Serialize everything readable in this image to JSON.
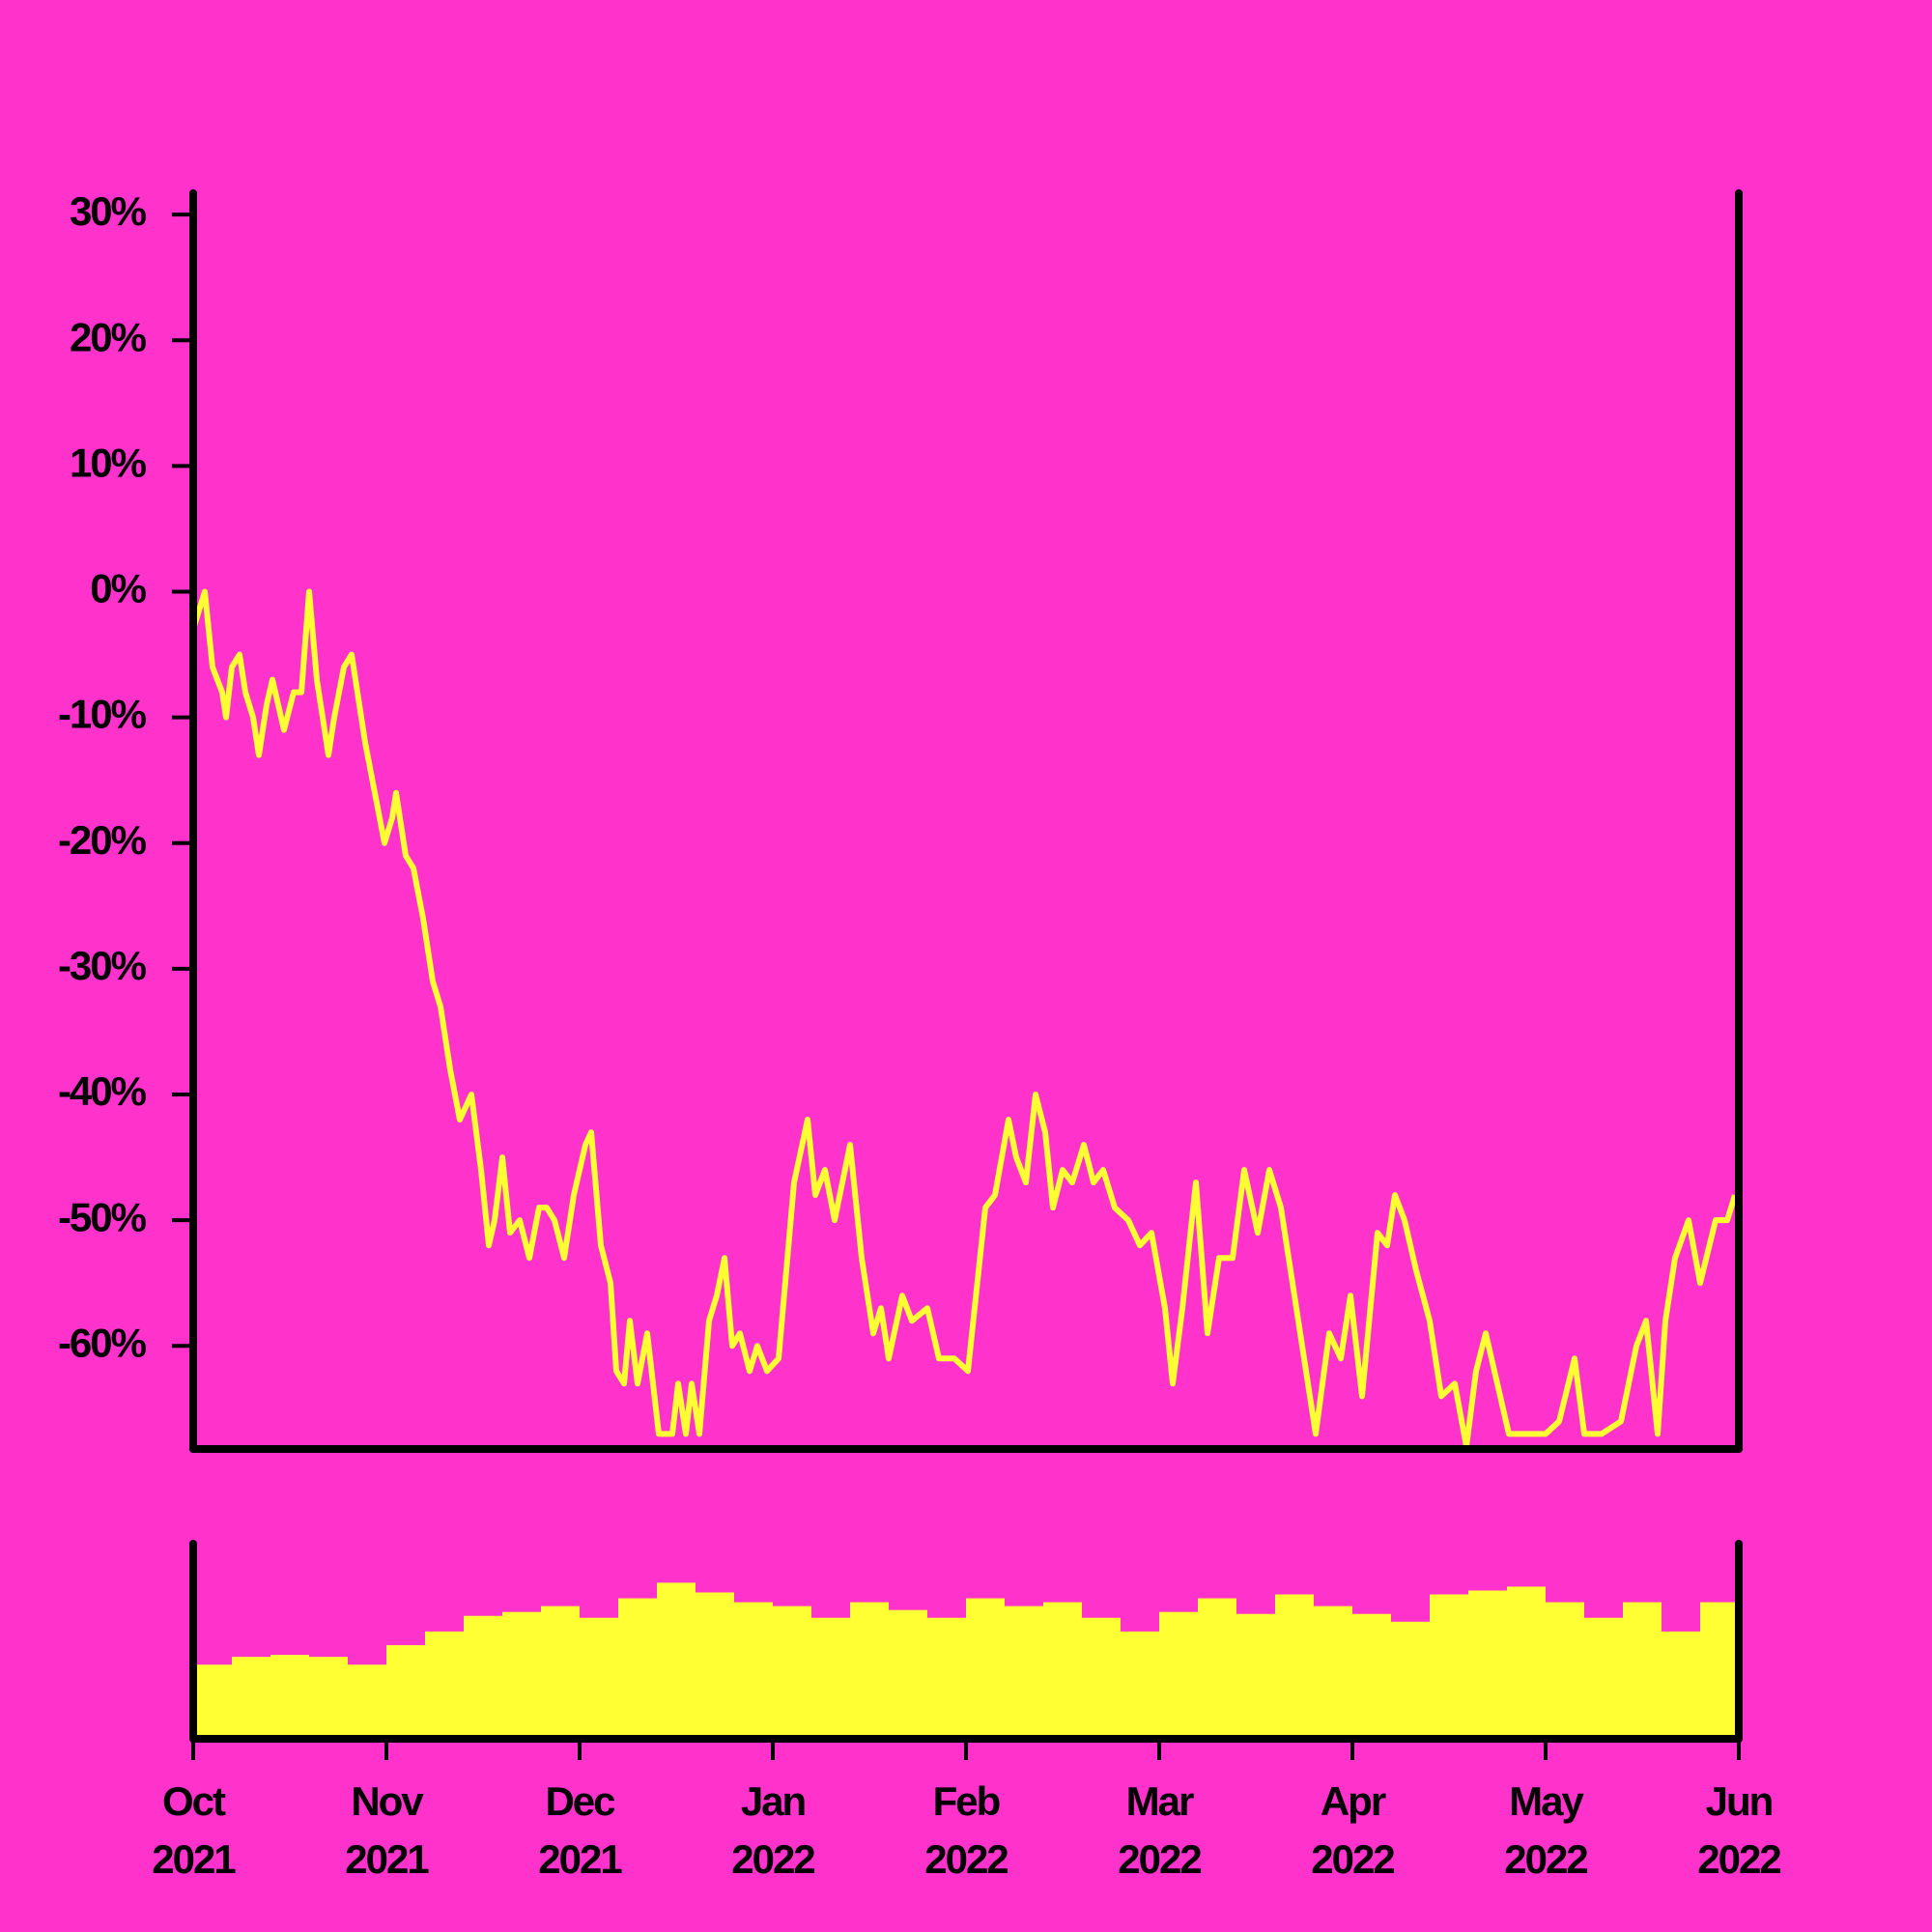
{
  "chart_data": [
    {
      "type": "line",
      "xlim": [
        0,
        8
      ],
      "ylim": [
        -68.2,
        31.7
      ],
      "yticks": [
        {
          "value": 30,
          "label": "30%"
        },
        {
          "value": 20,
          "label": "20%"
        },
        {
          "value": 10,
          "label": "10%"
        },
        {
          "value": 0,
          "label": "0%"
        },
        {
          "value": -10,
          "label": "-10%"
        },
        {
          "value": -20,
          "label": "-20%"
        },
        {
          "value": -30,
          "label": "-30%"
        },
        {
          "value": -40,
          "label": "-40%"
        },
        {
          "value": -50,
          "label": "-50%"
        },
        {
          "value": -60,
          "label": "-60%"
        }
      ],
      "color": "#ffff33",
      "x": [
        0,
        0.06,
        0.1,
        0.15,
        0.17,
        0.2,
        0.24,
        0.27,
        0.31,
        0.34,
        0.38,
        0.41,
        0.47,
        0.52,
        0.56,
        0.6,
        0.64,
        0.7,
        0.73,
        0.78,
        0.82,
        0.86,
        0.89,
        0.94,
        0.99,
        1.03,
        1.05,
        1.1,
        1.14,
        1.19,
        1.24,
        1.28,
        1.33,
        1.38,
        1.44,
        1.49,
        1.53,
        1.56,
        1.6,
        1.64,
        1.69,
        1.74,
        1.79,
        1.83,
        1.87,
        1.92,
        1.97,
        2.03,
        2.06,
        2.11,
        2.16,
        2.19,
        2.23,
        2.26,
        2.3,
        2.35,
        2.41,
        2.48,
        2.51,
        2.55,
        2.58,
        2.62,
        2.67,
        2.71,
        2.75,
        2.79,
        2.83,
        2.88,
        2.92,
        2.97,
        3.03,
        3.11,
        3.18,
        3.22,
        3.27,
        3.32,
        3.4,
        3.46,
        3.52,
        3.56,
        3.6,
        3.67,
        3.72,
        3.8,
        3.86,
        3.94,
        4.01,
        4.1,
        4.15,
        4.22,
        4.26,
        4.31,
        4.36,
        4.41,
        4.45,
        4.5,
        4.55,
        4.61,
        4.66,
        4.71,
        4.77,
        4.84,
        4.9,
        4.96,
        5.03,
        5.07,
        5.12,
        5.19,
        5.25,
        5.31,
        5.38,
        5.44,
        5.51,
        5.57,
        5.63,
        5.7,
        5.76,
        5.81,
        5.88,
        5.94,
        5.99,
        6.05,
        6.13,
        6.18,
        6.22,
        6.27,
        6.33,
        6.4,
        6.46,
        6.53,
        6.59,
        6.64,
        6.69,
        6.75,
        6.81,
        6.91,
        7.0,
        7.07,
        7.15,
        7.2,
        7.29,
        7.39,
        7.47,
        7.52,
        7.58,
        7.62,
        7.67,
        7.74,
        7.8,
        7.88,
        7.94,
        7.98
      ],
      "values": [
        -3,
        0,
        -6,
        -8,
        -10,
        -6,
        -5,
        -8,
        -10,
        -13,
        -9,
        -7,
        -11,
        -8,
        -8,
        0,
        -7,
        -13,
        -10,
        -6,
        -5,
        -9,
        -12,
        -16,
        -20,
        -18,
        -16,
        -21,
        -22,
        -26,
        -31,
        -33,
        -38,
        -42,
        -40,
        -46,
        -52,
        -50,
        -45,
        -51,
        -50,
        -53,
        -49,
        -49,
        -50,
        -53,
        -48,
        -44,
        -43,
        -52,
        -55,
        -62,
        -63,
        -58,
        -63,
        -59,
        -67,
        -67,
        -63,
        -67,
        -63,
        -67,
        -58,
        -56,
        -53,
        -60,
        -59,
        -62,
        -60,
        -62,
        -61,
        -47,
        -42,
        -48,
        -46,
        -50,
        -44,
        -53,
        -59,
        -57,
        -61,
        -56,
        -58,
        -57,
        -61,
        -61,
        -62,
        -49,
        -48,
        -42,
        -45,
        -47,
        -40,
        -43,
        -49,
        -46,
        -47,
        -44,
        -47,
        -46,
        -49,
        -50,
        -52,
        -51,
        -57,
        -63,
        -57,
        -47,
        -59,
        -53,
        -53,
        -46,
        -51,
        -46,
        -49,
        -56,
        -62,
        -67,
        -59,
        -61,
        -56,
        -64,
        -51,
        -52,
        -48,
        -50,
        -54,
        -58,
        -64,
        -63,
        -68,
        -62,
        -59,
        -63,
        -67,
        -67,
        -67,
        -66,
        -61,
        -67,
        -67,
        -66,
        -60,
        -58,
        -67,
        -58,
        -53,
        -50,
        -55,
        -50,
        -50,
        -48
      ]
    },
    {
      "type": "bar",
      "xlim": [
        0,
        8
      ],
      "ylim": [
        0,
        100
      ],
      "color": "#ffff33",
      "xticks": [
        {
          "value": 0,
          "label": "Oct\n2021"
        },
        {
          "value": 1,
          "label": "Nov\n2021"
        },
        {
          "value": 2,
          "label": "Dec\n2021"
        },
        {
          "value": 3,
          "label": "Jan\n2022"
        },
        {
          "value": 4,
          "label": "Feb\n2022"
        },
        {
          "value": 5,
          "label": "Mar\n2022"
        },
        {
          "value": 6,
          "label": "Apr\n2022"
        },
        {
          "value": 7,
          "label": "May\n2022"
        },
        {
          "value": 8,
          "label": "Jun\n2022"
        }
      ],
      "x": [
        0.1,
        0.3,
        0.5,
        0.7,
        0.9,
        1.1,
        1.3,
        1.5,
        1.7,
        1.9,
        2.1,
        2.3,
        2.5,
        2.7,
        2.9,
        3.1,
        3.3,
        3.5,
        3.7,
        3.9,
        4.1,
        4.3,
        4.5,
        4.7,
        4.9,
        5.1,
        5.3,
        5.5,
        5.7,
        5.9,
        6.1,
        6.3,
        6.5,
        6.7,
        6.9,
        7.1,
        7.3,
        7.5,
        7.7,
        7.9
      ],
      "values": [
        38,
        42,
        43,
        42,
        38,
        48,
        55,
        63,
        65,
        68,
        62,
        72,
        80,
        75,
        70,
        68,
        62,
        70,
        66,
        62,
        72,
        68,
        70,
        62,
        55,
        65,
        72,
        64,
        74,
        68,
        64,
        60,
        74,
        76,
        78,
        70,
        62,
        70,
        55,
        70
      ]
    }
  ]
}
